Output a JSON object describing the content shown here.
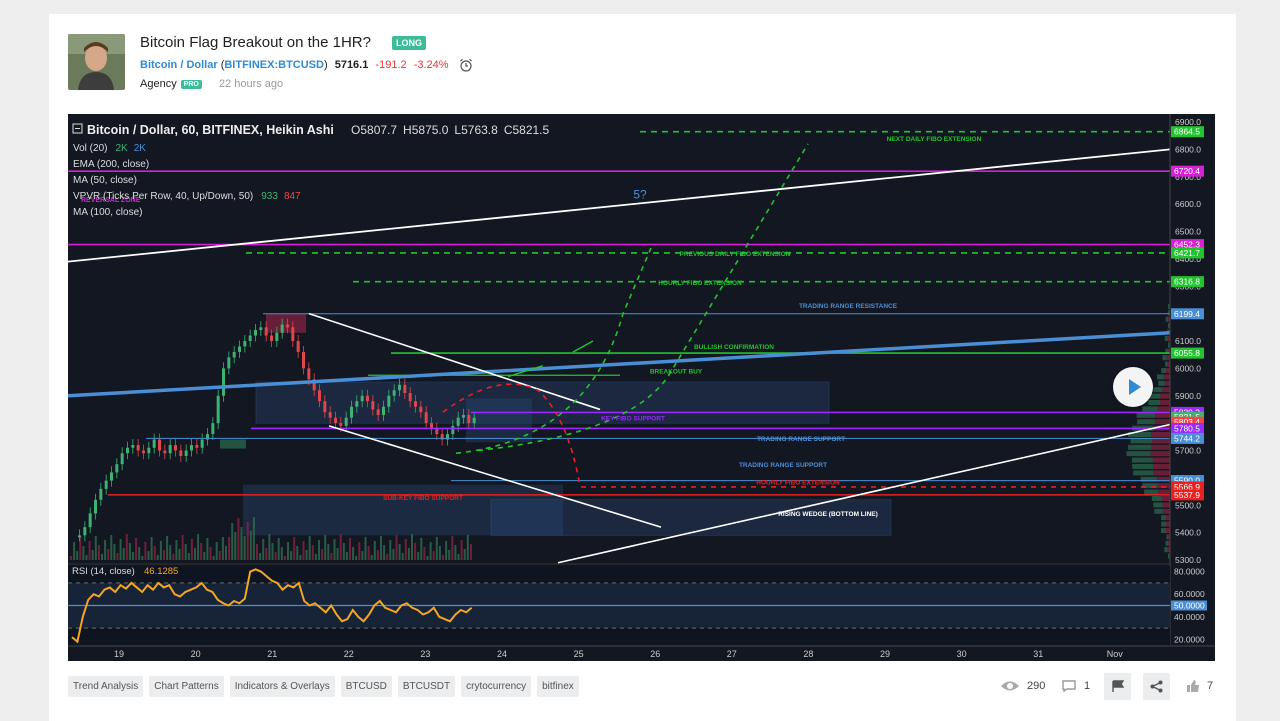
{
  "idea": {
    "title": "Bitcoin Flag Breakout on the 1HR?",
    "direction": "LONG",
    "symbol_name": "Bitcoin / Dollar",
    "symbol_ticker": "BITFINEX:BTCUSD",
    "last_price": "5716.1",
    "change": "-191.2",
    "change_pct": "-3.24%",
    "author": "Agency",
    "author_badge": "PRO",
    "posted": "22 hours ago"
  },
  "chart_header": {
    "title": "Bitcoin / Dollar, 60, BITFINEX, Heikin Ashi",
    "o_label": "O",
    "o": "5807.7",
    "h_label": "H",
    "h": "5875.0",
    "l_label": "L",
    "l": "5763.8",
    "c_label": "C",
    "c": "5821.5",
    "vol": "Vol (20)",
    "vol_v1": "2K",
    "vol_v2": "2K",
    "ema": "EMA (200, close)",
    "ma50": "MA (50, close)",
    "vpvr": "VPVR (Ticks Per Row, 40, Up/Down, 50)",
    "vpvr_up": "933",
    "vpvr_down": "847",
    "ma100": "MA (100, close)",
    "reversal": "REVERSAL ZONE"
  },
  "annotations": {
    "wave": "5?",
    "next_daily": "NEXT DAILY FIBO EXTENSION",
    "prev_daily": "PREVIOUS DAILY FIBO EXTENSION",
    "hourly_fibo": "HOURLY FIBO EXTENSION",
    "tr_resistance": "TRADING RANGE RESISTANCE",
    "bullish": "BULLISH CONFIRMATION",
    "breakout": "BREAKOUT BUY",
    "key_fibo": "KEY FIBO SUPPORT",
    "tr_support1": "TRADING RANGE SUPPORT",
    "tr_support2": "TRADING RANGE SUPPORT",
    "hourly_fibo2": "HOURLY FIBO EXTENSION",
    "sub_key": "SUB-KEY FIBO SUPPORT",
    "rising_wedge": "RISING WEDGE (BOTTOM LINE)"
  },
  "price_axis": [
    "6900.0",
    "6800.0",
    "6700.0",
    "6600.0",
    "6500.0",
    "6400.0",
    "6300.0",
    "6200.0",
    "6100.0",
    "6000.0",
    "5900.0",
    "5800.0",
    "5700.0",
    "5600.0",
    "5500.0",
    "5400.0",
    "5300.0"
  ],
  "price_tags": [
    {
      "label": "6864.5",
      "color": "#22c32e"
    },
    {
      "label": "6720.4",
      "color": "#d520d5"
    },
    {
      "label": "6452.3",
      "color": "#d520d5"
    },
    {
      "label": "6421.7",
      "color": "#22c32e"
    },
    {
      "label": "6316.8",
      "color": "#22c32e"
    },
    {
      "label": "6199.4",
      "color": "#4a8fd6"
    },
    {
      "label": "6055.8",
      "color": "#22c32e"
    },
    {
      "label": "5839.2",
      "color": "#9c27ff"
    },
    {
      "label": "5821.5",
      "color": "#3cb371"
    },
    {
      "label": "5803.4",
      "color": "#f04848"
    },
    {
      "label": "5780.5",
      "color": "#9c27ff"
    },
    {
      "label": "5744.2",
      "color": "#4a8fd6"
    },
    {
      "label": "5590.0",
      "color": "#4a8fd6"
    },
    {
      "label": "5566.9",
      "color": "#e82020"
    },
    {
      "label": "5537.9",
      "color": "#e82020"
    }
  ],
  "rsi": {
    "label": "RSI (14, close)",
    "value": "46.1285",
    "axis": [
      "80.0000",
      "60.0000",
      "50.0000",
      "40.0000",
      "20.0000"
    ]
  },
  "time_axis": [
    "19",
    "20",
    "21",
    "22",
    "23",
    "24",
    "25",
    "26",
    "27",
    "28",
    "29",
    "30",
    "31",
    "Nov"
  ],
  "tags": [
    "Trend Analysis",
    "Chart Patterns",
    "Indicators & Overlays",
    "BTCUSD",
    "BTCUSDT",
    "crytocurrency",
    "bitfinex"
  ],
  "stats": {
    "views": "290",
    "comments": "1",
    "likes": "7"
  },
  "colors": {
    "green": "#22c32e",
    "magenta": "#d520d5",
    "blue": "#4a8fd6",
    "red": "#e82020",
    "rsi": "#f4a623",
    "bg": "#131722"
  }
}
